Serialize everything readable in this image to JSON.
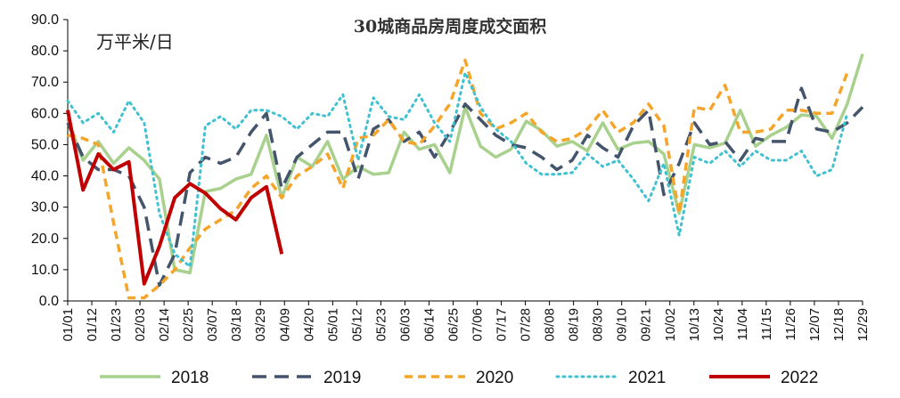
{
  "chart_data": {
    "type": "line",
    "title": "30城商品房周度成交面积",
    "unit_label": "万平米/日",
    "ylim": [
      0,
      90
    ],
    "yticks": [
      "0.0",
      "10.0",
      "20.0",
      "30.0",
      "40.0",
      "50.0",
      "60.0",
      "70.0",
      "80.0",
      "90.0"
    ],
    "xticks": [
      "01/01",
      "01/12",
      "01/23",
      "02/03",
      "02/14",
      "02/25",
      "03/07",
      "03/18",
      "03/29",
      "04/09",
      "04/20",
      "05/01",
      "05/12",
      "05/23",
      "06/03",
      "06/14",
      "06/25",
      "07/06",
      "07/17",
      "07/28",
      "08/08",
      "08/19",
      "08/30",
      "09/10",
      "09/21",
      "10/02",
      "10/13",
      "10/24",
      "11/04",
      "11/15",
      "11/26",
      "12/07",
      "12/18",
      "12/29"
    ],
    "legend_position": "bottom",
    "grid": false,
    "series": [
      {
        "name": "2018",
        "color": "#a9d18e",
        "dash": "solid",
        "width": 3.5,
        "values": [
          58,
          45,
          51,
          44,
          49,
          45,
          39,
          10,
          9,
          35,
          36,
          39,
          40.5,
          53,
          33,
          46,
          43,
          51,
          39,
          43,
          40.5,
          41,
          54,
          48.5,
          50,
          41,
          62,
          49.5,
          46,
          48.5,
          57.5,
          54.5,
          49.5,
          51,
          48,
          57,
          48.5,
          50.5,
          51,
          47,
          28,
          50,
          49,
          50.5,
          61,
          49.5,
          53,
          55.5,
          59.5,
          59,
          52,
          63,
          79
        ]
      },
      {
        "name": "2019",
        "color": "#44546a",
        "dash": "longdash",
        "width": 3.5,
        "values": [
          57,
          46,
          42,
          42,
          40,
          30,
          5,
          15,
          41,
          46,
          44,
          46,
          54,
          60,
          36,
          46,
          50,
          54,
          54,
          39,
          55,
          58,
          51,
          54,
          46,
          54,
          63,
          58,
          53,
          50,
          49,
          46,
          42,
          45,
          53,
          49,
          46,
          56,
          61,
          34,
          44,
          57,
          50,
          51,
          45,
          52,
          51,
          51,
          68,
          55,
          54,
          57,
          62
        ]
      },
      {
        "name": "2020",
        "color": "#f4a52a",
        "dash": "dash",
        "width": 3.5,
        "values": [
          53,
          52,
          50,
          25,
          1,
          1,
          5,
          10,
          17,
          23,
          26,
          29,
          36,
          40,
          33,
          40,
          43,
          47,
          36,
          52,
          53,
          58,
          51,
          50,
          56,
          63,
          77,
          60,
          55,
          57,
          60,
          54,
          51,
          52,
          55,
          61,
          54,
          57,
          63,
          56,
          28,
          62,
          61,
          69,
          54,
          54,
          55,
          61,
          61,
          60,
          60,
          73
        ]
      },
      {
        "name": "2021",
        "color": "#3fc1d0",
        "dash": "dot",
        "width": 3,
        "values": [
          64,
          57,
          60,
          54,
          64,
          57,
          28,
          15,
          11,
          56,
          59,
          55,
          61,
          61,
          59,
          55,
          60,
          59,
          66,
          45,
          65,
          59,
          58,
          66,
          57,
          51,
          73,
          62,
          55,
          51,
          44,
          40.5,
          40.5,
          41,
          47,
          43,
          45,
          39,
          32,
          44,
          21,
          46,
          44,
          48,
          43,
          48,
          45,
          45,
          48,
          40,
          42,
          60
        ]
      },
      {
        "name": "2022",
        "color": "#c00000",
        "dash": "solid",
        "width": 4,
        "values": [
          61,
          35.5,
          47,
          42,
          44.5,
          5.5,
          17.5,
          33,
          37.5,
          34.5,
          29.5,
          26,
          33,
          36.5,
          15
        ]
      }
    ]
  }
}
